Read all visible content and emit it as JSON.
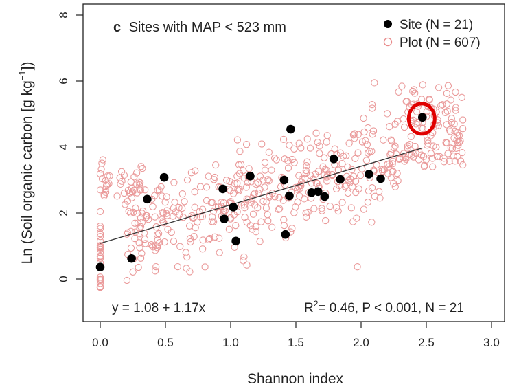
{
  "chart_data": {
    "type": "scatter",
    "panel_letter": "c",
    "title": "Sites with MAP < 523 mm",
    "xlabel": "Shannon index",
    "ylabel": "Ln (Soil organic carbon [g  kg",
    "ylabel_sup": "−1",
    "ylabel_end": "])",
    "xlim": [
      -0.15,
      3.12
    ],
    "ylim": [
      -1.35,
      8.3
    ],
    "xticks": [
      "0.0",
      "0.5",
      "1.0",
      "1.5",
      "2.0",
      "2.5",
      "3.0"
    ],
    "yticks": [
      "0",
      "2",
      "4",
      "6",
      "8"
    ],
    "grid": false,
    "legend_position": "top-right",
    "legend": [
      {
        "label": "Site (N = 21)",
        "marker": "filled-circle",
        "color": "#000000"
      },
      {
        "label": "Plot (N = 607)",
        "marker": "open-circle",
        "color": "#e88a8a"
      }
    ],
    "equation": "y = 1.08 + 1.17x",
    "stats_prefix": "R",
    "stats_sup": "2",
    "stats_suffix": "= 0.46, P < 0.001, N = 21",
    "fit_line": {
      "intercept": 1.08,
      "slope": 1.17,
      "x_range": [
        0.0,
        2.47
      ],
      "color": "#333333"
    },
    "highlight": {
      "x": 2.47,
      "y": 4.9,
      "color": "#e00000"
    },
    "sites": [
      {
        "x": 0.0,
        "y": 0.36
      },
      {
        "x": 0.24,
        "y": 0.62
      },
      {
        "x": 0.36,
        "y": 2.42
      },
      {
        "x": 0.49,
        "y": 3.08
      },
      {
        "x": 0.94,
        "y": 2.73
      },
      {
        "x": 0.95,
        "y": 1.82
      },
      {
        "x": 1.02,
        "y": 2.18
      },
      {
        "x": 1.04,
        "y": 1.15
      },
      {
        "x": 1.15,
        "y": 3.12
      },
      {
        "x": 1.41,
        "y": 3.0
      },
      {
        "x": 1.42,
        "y": 1.35
      },
      {
        "x": 1.45,
        "y": 2.52
      },
      {
        "x": 1.46,
        "y": 4.54
      },
      {
        "x": 1.62,
        "y": 2.62
      },
      {
        "x": 1.67,
        "y": 2.65
      },
      {
        "x": 1.72,
        "y": 2.5
      },
      {
        "x": 1.79,
        "y": 3.64
      },
      {
        "x": 1.84,
        "y": 3.02
      },
      {
        "x": 2.06,
        "y": 3.18
      },
      {
        "x": 2.15,
        "y": 3.04
      },
      {
        "x": 2.47,
        "y": 4.9
      }
    ],
    "plots_count": 607,
    "plots_note": "Plot-level points are a dense cloud scattered around each site; generated below from site positions."
  }
}
